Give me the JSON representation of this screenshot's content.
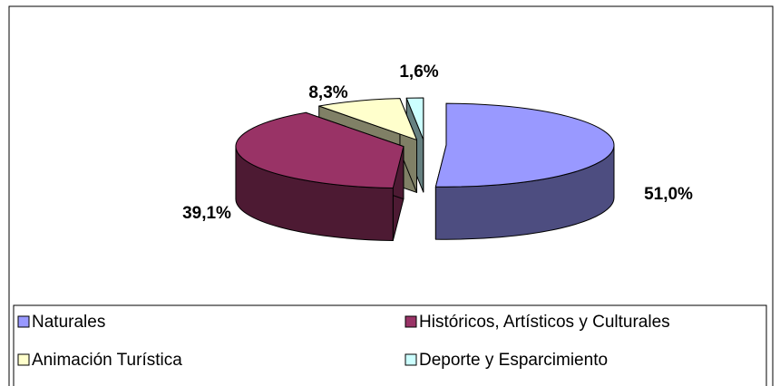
{
  "chart_data": {
    "type": "pie",
    "three_d": true,
    "exploded": true,
    "categories": [
      "Naturales",
      "Históricos, Artísticos  y Culturales",
      "Animación Turística",
      "Deporte y Esparcimiento"
    ],
    "values": [
      51.0,
      39.1,
      8.3,
      1.6
    ],
    "value_labels": [
      "51,0%",
      "39,1%",
      "8,3%",
      "1,6%"
    ],
    "colors": [
      "#9999ff",
      "#993366",
      "#ffffcc",
      "#ccffff"
    ],
    "legend": "bottom"
  }
}
